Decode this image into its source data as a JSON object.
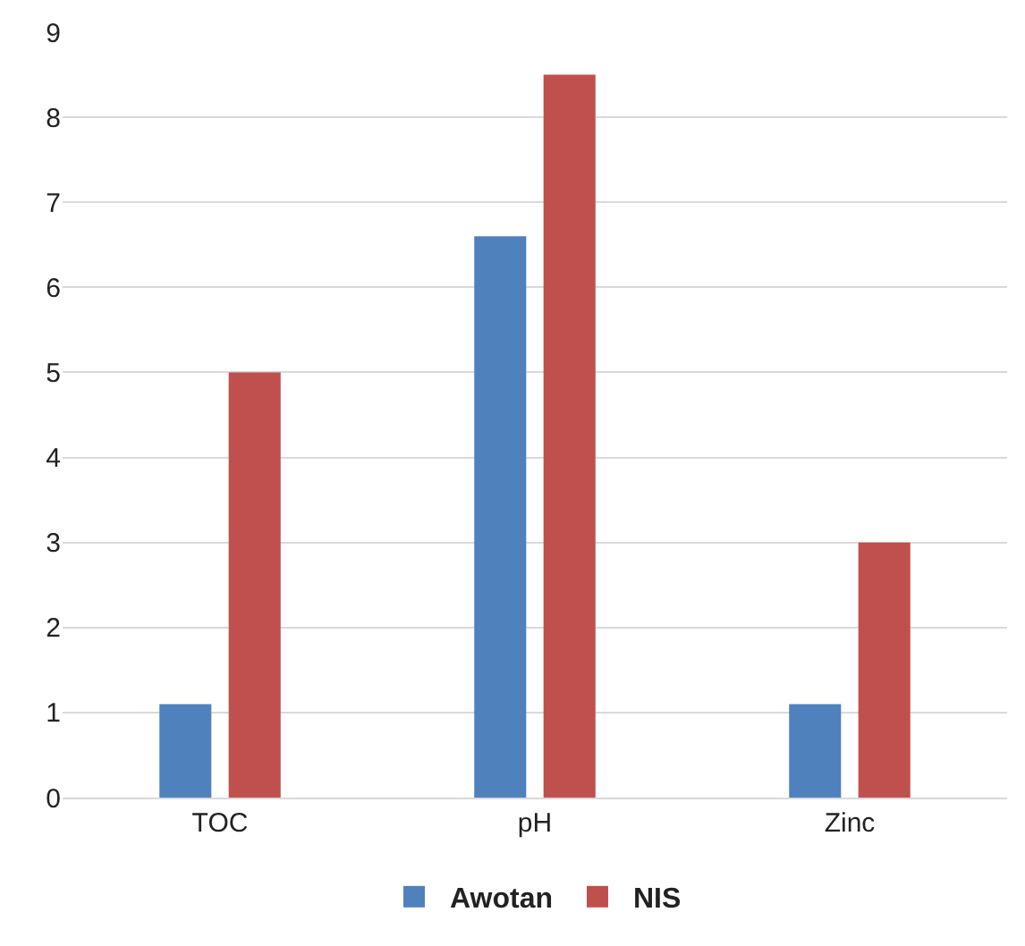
{
  "chart_data": {
    "type": "bar",
    "categories": [
      "TOC",
      "pH",
      "Zinc"
    ],
    "series": [
      {
        "name": "Awotan",
        "color": "#4f81bd",
        "values": [
          1.1,
          6.6,
          1.1
        ]
      },
      {
        "name": "NIS",
        "color": "#c0504d",
        "values": [
          5,
          8.5,
          3
        ]
      }
    ],
    "ylim": [
      0,
      9
    ],
    "yticks": [
      0,
      1,
      2,
      3,
      4,
      5,
      6,
      7,
      8,
      9
    ],
    "grid": "y",
    "legend": "bottom"
  }
}
